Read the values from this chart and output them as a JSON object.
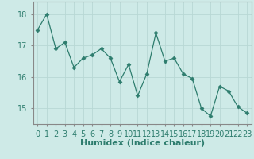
{
  "x": [
    0,
    1,
    2,
    3,
    4,
    5,
    6,
    7,
    8,
    9,
    10,
    11,
    12,
    13,
    14,
    15,
    16,
    17,
    18,
    19,
    20,
    21,
    22,
    23
  ],
  "y": [
    17.5,
    18.0,
    16.9,
    17.1,
    16.3,
    16.6,
    16.7,
    16.9,
    16.6,
    15.85,
    16.4,
    15.4,
    16.1,
    17.4,
    16.5,
    16.6,
    16.1,
    15.95,
    15.0,
    14.75,
    15.7,
    15.55,
    15.05,
    14.85
  ],
  "line_color": "#2e7d6e",
  "marker": "D",
  "marker_size": 2.5,
  "bg_color": "#ceeae7",
  "grid_color": "#b8d8d4",
  "axis_color": "#888888",
  "xlabel": "Humidex (Indice chaleur)",
  "xlabel_fontsize": 8,
  "tick_fontsize": 7,
  "ylim": [
    14.5,
    18.4
  ],
  "yticks": [
    15,
    16,
    17,
    18
  ],
  "xlim": [
    -0.5,
    23.5
  ]
}
